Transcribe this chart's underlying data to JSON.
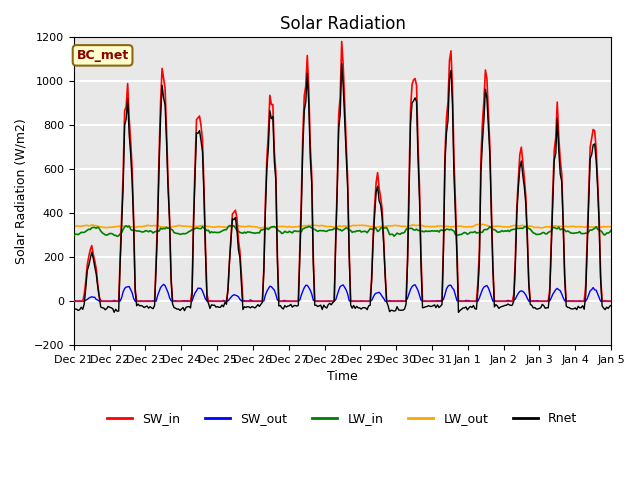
{
  "title": "Solar Radiation",
  "ylabel": "Solar Radiation (W/m2)",
  "xlabel": "Time",
  "ylim": [
    -200,
    1200
  ],
  "annotation": "BC_met",
  "annotation_color": "#8B0000",
  "annotation_bg": "#FFFFCC",
  "background_color": "#E8E8E8",
  "grid_color": "white",
  "tick_labels": [
    "Dec 21",
    "Dec 22",
    "Dec 23",
    "Dec 24",
    "Dec 25",
    "Dec 26",
    "Dec 27",
    "Dec 28",
    "Dec 29",
    "Dec 30",
    "Dec 31",
    "Jan 1",
    "Jan 2",
    "Jan 3",
    "Jan 4",
    "Jan 5"
  ],
  "series": {
    "SW_in": {
      "color": "red",
      "lw": 1.2
    },
    "SW_out": {
      "color": "blue",
      "lw": 1.0
    },
    "LW_in": {
      "color": "green",
      "lw": 1.2
    },
    "LW_out": {
      "color": "orange",
      "lw": 1.2
    },
    "Rnet": {
      "color": "black",
      "lw": 1.0
    }
  },
  "legend": [
    {
      "label": "SW_in",
      "color": "red"
    },
    {
      "label": "SW_out",
      "color": "blue"
    },
    {
      "label": "LW_in",
      "color": "green"
    },
    {
      "label": "LW_out",
      "color": "orange"
    },
    {
      "label": "Rnet",
      "color": "black"
    }
  ]
}
